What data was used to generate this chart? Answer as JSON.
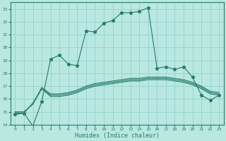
{
  "xlabel": "Humidex (Indice chaleur)",
  "xlim": [
    -0.5,
    23.5
  ],
  "ylim": [
    14,
    23.5
  ],
  "yticks": [
    14,
    15,
    16,
    17,
    18,
    19,
    20,
    21,
    22,
    23
  ],
  "xticks": [
    0,
    1,
    2,
    3,
    4,
    5,
    6,
    7,
    8,
    9,
    10,
    11,
    12,
    13,
    14,
    15,
    16,
    17,
    18,
    19,
    20,
    21,
    22,
    23
  ],
  "bg_color": "#b8e8e0",
  "line_color": "#2a7a6a",
  "grid_color": "#8ecece",
  "lines": [
    {
      "x": [
        0,
        1,
        2,
        3,
        4,
        5,
        6,
        7,
        8,
        9,
        10,
        11,
        12,
        13,
        14,
        15,
        16,
        17,
        18,
        19,
        20,
        21,
        22,
        23
      ],
      "y": [
        14.8,
        14.9,
        13.9,
        15.8,
        19.1,
        19.4,
        18.7,
        18.6,
        21.3,
        21.2,
        21.9,
        22.1,
        22.7,
        22.7,
        22.8,
        23.1,
        18.4,
        18.5,
        18.3,
        18.5,
        17.7,
        16.3,
        15.9,
        16.3
      ],
      "marker": "*",
      "markersize": 3.5
    },
    {
      "x": [
        0,
        1,
        2,
        3,
        4,
        5,
        6,
        7,
        8,
        9,
        10,
        11,
        12,
        13,
        14,
        15,
        16,
        17,
        18,
        19,
        20,
        21,
        22,
        23
      ],
      "y": [
        14.9,
        14.9,
        15.7,
        16.8,
        16.2,
        16.2,
        16.3,
        16.5,
        16.8,
        17.0,
        17.1,
        17.2,
        17.3,
        17.4,
        17.4,
        17.5,
        17.5,
        17.5,
        17.4,
        17.3,
        17.1,
        16.8,
        16.4,
        16.3
      ],
      "marker": null,
      "markersize": 0
    },
    {
      "x": [
        0,
        1,
        2,
        3,
        4,
        5,
        6,
        7,
        8,
        9,
        10,
        11,
        12,
        13,
        14,
        15,
        16,
        17,
        18,
        19,
        20,
        21,
        22,
        23
      ],
      "y": [
        15.0,
        15.0,
        15.6,
        16.9,
        16.4,
        16.4,
        16.5,
        16.7,
        17.0,
        17.2,
        17.3,
        17.4,
        17.5,
        17.6,
        17.6,
        17.7,
        17.7,
        17.7,
        17.6,
        17.5,
        17.3,
        17.0,
        16.6,
        16.5
      ],
      "marker": null,
      "markersize": 0
    },
    {
      "x": [
        0,
        1,
        2,
        3,
        4,
        5,
        6,
        7,
        8,
        9,
        10,
        11,
        12,
        13,
        14,
        15,
        16,
        17,
        18,
        19,
        20,
        21,
        22,
        23
      ],
      "y": [
        15.0,
        15.0,
        15.6,
        16.8,
        16.3,
        16.3,
        16.4,
        16.6,
        16.9,
        17.1,
        17.2,
        17.3,
        17.4,
        17.5,
        17.5,
        17.6,
        17.6,
        17.6,
        17.5,
        17.4,
        17.2,
        16.9,
        16.5,
        16.4
      ],
      "marker": null,
      "markersize": 0
    }
  ]
}
